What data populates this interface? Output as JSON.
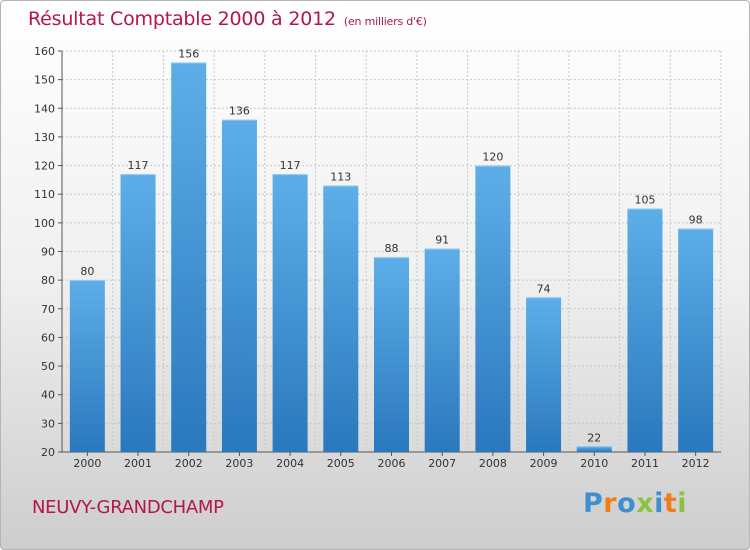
{
  "header": {
    "title": "Résultat Comptable 2000 à 2012",
    "unit": "(en milliers d'€)"
  },
  "footer": {
    "town": "NEUVY-GRANDCHAMP",
    "brand": "Proxiti"
  },
  "colors": {
    "title": "#b3164e",
    "bar_top": "#5daee8",
    "bar_bottom": "#2a78bd",
    "brand_letters": [
      "#3f8fd0",
      "#f07d19",
      "#3f8fd0",
      "#8ac43f",
      "#3f8fd0",
      "#f07d19",
      "#8ac43f"
    ]
  },
  "chart_data": {
    "type": "bar",
    "title": "Résultat Comptable 2000 à 2012",
    "subtitle": "(en milliers d'€)",
    "xlabel": "",
    "ylabel": "",
    "categories": [
      "2000",
      "2001",
      "2002",
      "2003",
      "2004",
      "2005",
      "2006",
      "2007",
      "2008",
      "2009",
      "2010",
      "2011",
      "2012"
    ],
    "values": [
      80,
      117,
      156,
      136,
      117,
      113,
      88,
      91,
      120,
      74,
      22,
      105,
      98
    ],
    "ylim": [
      20,
      160
    ],
    "yticks": [
      20,
      30,
      40,
      50,
      60,
      70,
      80,
      90,
      100,
      110,
      120,
      130,
      140,
      150,
      160
    ],
    "grid": true
  }
}
